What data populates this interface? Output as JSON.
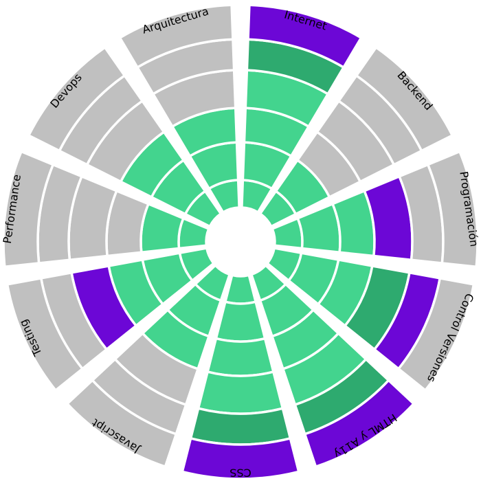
{
  "chart_data": {
    "type": "radial-segmented",
    "levels": 6,
    "colors": {
      "empty": "#C0C0C0",
      "level_low": "#43D48E",
      "level_high": "#2EAA6F",
      "level_top": "#6C07D6"
    },
    "categories": [
      "Internet",
      "Backend",
      "Programación",
      "Control Versiones",
      "HTML y A11y",
      "CSS",
      "Javascript",
      "Testing",
      "Performance",
      "Devops",
      "Arquitectura"
    ],
    "values": [
      6,
      2,
      4,
      5,
      6,
      6,
      3,
      4,
      2,
      3,
      3
    ]
  }
}
